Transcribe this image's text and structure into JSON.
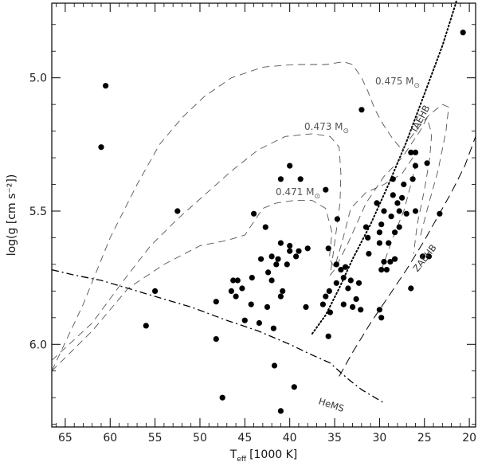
{
  "chart_data": {
    "type": "scatter",
    "title": "",
    "xlabel": "T",
    "xlabel_sub": "eff",
    "xlabel_unit": "[1000 K]",
    "ylabel": "log(g [cm s⁻²])",
    "x_reversed": true,
    "y_reversed": true,
    "xlim": [
      66.5,
      19.3
    ],
    "ylim": [
      4.72,
      6.31
    ],
    "grid": false,
    "xticks": [
      65,
      60,
      55,
      50,
      45,
      40,
      35,
      30,
      25,
      20
    ],
    "yticks": [
      5.0,
      5.5,
      6.0
    ],
    "ytick_labels": [
      "5.0",
      "5.5",
      "6.0"
    ],
    "points": [
      [
        60.5,
        5.03
      ],
      [
        61.0,
        5.26
      ],
      [
        52.5,
        5.5
      ],
      [
        55.0,
        5.8
      ],
      [
        56.0,
        5.93
      ],
      [
        48.2,
        5.98
      ],
      [
        47.5,
        6.2
      ],
      [
        41.7,
        6.08
      ],
      [
        39.5,
        6.16
      ],
      [
        41.0,
        6.25
      ],
      [
        40.0,
        5.33
      ],
      [
        41.0,
        5.38
      ],
      [
        38.8,
        5.38
      ],
      [
        44.0,
        5.51
      ],
      [
        42.7,
        5.56
      ],
      [
        36.0,
        5.42
      ],
      [
        34.7,
        5.53
      ],
      [
        32.0,
        5.12
      ],
      [
        41.0,
        5.62
      ],
      [
        40.0,
        5.63
      ],
      [
        39.0,
        5.65
      ],
      [
        40.0,
        5.65
      ],
      [
        38.0,
        5.64
      ],
      [
        42.0,
        5.67
      ],
      [
        41.3,
        5.68
      ],
      [
        40.3,
        5.7
      ],
      [
        39.3,
        5.67
      ],
      [
        41.5,
        5.7
      ],
      [
        42.4,
        5.73
      ],
      [
        43.2,
        5.68
      ],
      [
        44.2,
        5.75
      ],
      [
        45.8,
        5.76
      ],
      [
        46.3,
        5.76
      ],
      [
        46.5,
        5.8
      ],
      [
        45.3,
        5.79
      ],
      [
        42.0,
        5.76
      ],
      [
        41.0,
        5.82
      ],
      [
        46.0,
        5.82
      ],
      [
        48.2,
        5.84
      ],
      [
        44.3,
        5.85
      ],
      [
        42.5,
        5.86
      ],
      [
        38.2,
        5.86
      ],
      [
        43.4,
        5.92
      ],
      [
        41.8,
        5.94
      ],
      [
        45.0,
        5.91
      ],
      [
        40.8,
        5.8
      ],
      [
        35.7,
        5.64
      ],
      [
        34.8,
        5.7
      ],
      [
        34.3,
        5.72
      ],
      [
        33.8,
        5.71
      ],
      [
        34.0,
        5.75
      ],
      [
        33.5,
        5.79
      ],
      [
        34.8,
        5.77
      ],
      [
        35.6,
        5.8
      ],
      [
        33.2,
        5.76
      ],
      [
        32.3,
        5.77
      ],
      [
        36.0,
        5.82
      ],
      [
        34.0,
        5.85
      ],
      [
        32.6,
        5.83
      ],
      [
        33.0,
        5.86
      ],
      [
        35.5,
        5.88
      ],
      [
        36.3,
        5.85
      ],
      [
        32.1,
        5.87
      ],
      [
        35.7,
        5.97
      ],
      [
        30.3,
        5.47
      ],
      [
        29.5,
        5.5
      ],
      [
        28.7,
        5.52
      ],
      [
        29.8,
        5.55
      ],
      [
        31.5,
        5.56
      ],
      [
        30.0,
        5.58
      ],
      [
        30.0,
        5.62
      ],
      [
        31.3,
        5.6
      ],
      [
        31.2,
        5.66
      ],
      [
        29.0,
        5.62
      ],
      [
        28.3,
        5.58
      ],
      [
        27.8,
        5.56
      ],
      [
        28.5,
        5.44
      ],
      [
        27.5,
        5.45
      ],
      [
        28.5,
        5.38
      ],
      [
        27.3,
        5.4
      ],
      [
        27.8,
        5.5
      ],
      [
        27.0,
        5.51
      ],
      [
        26.0,
        5.5
      ],
      [
        26.3,
        5.38
      ],
      [
        26.0,
        5.33
      ],
      [
        24.7,
        5.32
      ],
      [
        26.5,
        5.28
      ],
      [
        26.0,
        5.28
      ],
      [
        28.0,
        5.47
      ],
      [
        23.3,
        5.51
      ],
      [
        29.5,
        5.69
      ],
      [
        28.8,
        5.69
      ],
      [
        28.3,
        5.68
      ],
      [
        29.8,
        5.72
      ],
      [
        29.2,
        5.72
      ],
      [
        30.0,
        5.87
      ],
      [
        29.8,
        5.9
      ],
      [
        26.5,
        5.79
      ],
      [
        25.2,
        5.67
      ],
      [
        24.5,
        5.67
      ],
      [
        20.7,
        4.83
      ]
    ],
    "curves": [
      {
        "name": "TAEHB",
        "style": "dotted",
        "points": [
          [
            37.5,
            5.96
          ],
          [
            36.0,
            5.89
          ],
          [
            34.5,
            5.79
          ],
          [
            33.0,
            5.68
          ],
          [
            31.0,
            5.55
          ],
          [
            29.0,
            5.4
          ],
          [
            27.0,
            5.24
          ],
          [
            25.0,
            5.06
          ],
          [
            23.0,
            4.88
          ],
          [
            21.5,
            4.72
          ],
          [
            20.5,
            4.57
          ]
        ]
      },
      {
        "name": "ZAEHB",
        "style": "long-dash",
        "points": [
          [
            34.5,
            6.12
          ],
          [
            33.0,
            6.03
          ],
          [
            31.0,
            5.92
          ],
          [
            29.0,
            5.82
          ],
          [
            27.0,
            5.72
          ],
          [
            25.0,
            5.61
          ],
          [
            23.5,
            5.52
          ],
          [
            22.0,
            5.43
          ],
          [
            20.5,
            5.33
          ],
          [
            19.3,
            5.22
          ]
        ]
      },
      {
        "name": "HeMS",
        "style": "dash-dot",
        "points": [
          [
            66.5,
            5.72
          ],
          [
            64.0,
            5.74
          ],
          [
            61.0,
            5.76
          ],
          [
            58.0,
            5.79
          ],
          [
            55.0,
            5.82
          ],
          [
            51.0,
            5.86
          ],
          [
            47.0,
            5.91
          ],
          [
            43.5,
            5.95
          ],
          [
            40.0,
            6.0
          ],
          [
            37.5,
            6.04
          ],
          [
            35.5,
            6.07
          ],
          [
            33.5,
            6.13
          ],
          [
            32.0,
            6.17
          ],
          [
            30.5,
            6.2
          ],
          [
            29.5,
            6.22
          ]
        ]
      },
      {
        "name": "0.471 M☉",
        "style": "dash",
        "points": [
          [
            66.5,
            6.1
          ],
          [
            62.0,
            5.95
          ],
          [
            58.0,
            5.79
          ],
          [
            54.0,
            5.7
          ],
          [
            50.0,
            5.63
          ],
          [
            47.0,
            5.61
          ],
          [
            45.0,
            5.59
          ],
          [
            44.0,
            5.54
          ],
          [
            43.0,
            5.49
          ],
          [
            41.5,
            5.47
          ],
          [
            39.5,
            5.46
          ],
          [
            37.5,
            5.46
          ],
          [
            36.0,
            5.49
          ],
          [
            35.3,
            5.58
          ],
          [
            35.6,
            5.68
          ],
          [
            35.0,
            5.71
          ],
          [
            34.2,
            5.62
          ],
          [
            33.2,
            5.49
          ],
          [
            31.5,
            5.43
          ],
          [
            29.5,
            5.4
          ],
          [
            27.5,
            5.36
          ],
          [
            26.3,
            5.3
          ],
          [
            26.0,
            5.33
          ],
          [
            26.5,
            5.4
          ],
          [
            27.3,
            5.5
          ],
          [
            28.5,
            5.6
          ],
          [
            30.0,
            5.74
          ]
        ]
      },
      {
        "name": "0.473 M☉",
        "style": "dash",
        "points": [
          [
            66.5,
            6.06
          ],
          [
            62.0,
            5.92
          ],
          [
            58.5,
            5.76
          ],
          [
            55.5,
            5.63
          ],
          [
            52.5,
            5.53
          ],
          [
            49.5,
            5.44
          ],
          [
            46.5,
            5.35
          ],
          [
            43.5,
            5.27
          ],
          [
            40.5,
            5.22
          ],
          [
            37.5,
            5.21
          ],
          [
            35.5,
            5.22
          ],
          [
            34.5,
            5.26
          ],
          [
            34.3,
            5.36
          ],
          [
            34.4,
            5.47
          ],
          [
            34.8,
            5.57
          ],
          [
            35.2,
            5.67
          ],
          [
            35.5,
            5.74
          ],
          [
            35.0,
            5.72
          ],
          [
            33.5,
            5.62
          ],
          [
            31.5,
            5.47
          ],
          [
            29.5,
            5.37
          ],
          [
            27.5,
            5.3
          ],
          [
            25.5,
            5.2
          ],
          [
            24.7,
            5.15
          ],
          [
            24.2,
            5.21
          ],
          [
            24.4,
            5.3
          ],
          [
            25.0,
            5.42
          ],
          [
            25.8,
            5.55
          ],
          [
            26.2,
            5.66
          ]
        ]
      },
      {
        "name": "0.475 M☉",
        "style": "dash",
        "points": [
          [
            66.5,
            6.1
          ],
          [
            63.0,
            5.85
          ],
          [
            60.0,
            5.6
          ],
          [
            57.0,
            5.4
          ],
          [
            54.5,
            5.25
          ],
          [
            52.0,
            5.15
          ],
          [
            49.5,
            5.07
          ],
          [
            46.5,
            5.0
          ],
          [
            43.0,
            4.96
          ],
          [
            39.5,
            4.95
          ],
          [
            36.0,
            4.95
          ],
          [
            34.0,
            4.94
          ],
          [
            33.0,
            4.95
          ],
          [
            32.0,
            5.0
          ],
          [
            31.3,
            5.05
          ],
          [
            30.5,
            5.12
          ],
          [
            29.5,
            5.18
          ],
          [
            28.5,
            5.23
          ],
          [
            27.5,
            5.27
          ],
          [
            26.0,
            5.2
          ],
          [
            24.5,
            5.14
          ],
          [
            23.0,
            5.1
          ],
          [
            22.3,
            5.11
          ],
          [
            22.6,
            5.2
          ],
          [
            23.5,
            5.35
          ],
          [
            24.5,
            5.47
          ],
          [
            25.5,
            5.6
          ]
        ]
      }
    ],
    "labels": {
      "curve_471": "0.471 M",
      "curve_473": "0.473 M",
      "curve_475": "0.475 M",
      "sun_symbol": "⊙",
      "taehb": "TAEHB",
      "zaehb": "ZAEHB",
      "hems": "HeMS"
    }
  }
}
